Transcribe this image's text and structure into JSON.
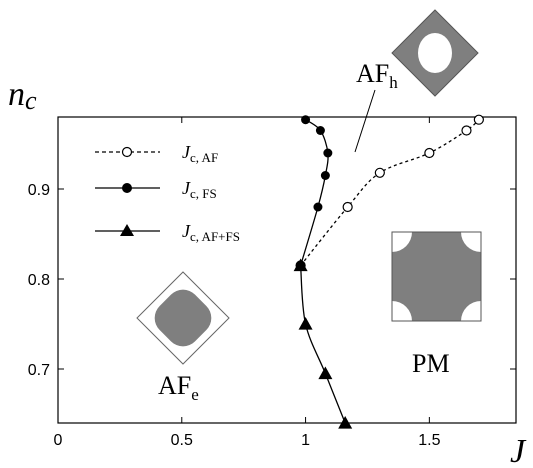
{
  "chart_data": {
    "type": "line",
    "xlabel": "J",
    "ylabel": "n",
    "ylabel_sub": "c",
    "xlim": [
      0,
      1.85
    ],
    "ylim": [
      0.64,
      0.98
    ],
    "xticks": [
      "0",
      "0.5",
      "1",
      "1.5"
    ],
    "yticks": [
      "0.7",
      "0.8",
      "0.9"
    ],
    "series": [
      {
        "name": "J",
        "sub": "c, AF",
        "marker": "open-circle",
        "line": "dashed",
        "points": [
          [
            0.98,
            0.815
          ],
          [
            1.17,
            0.88
          ],
          [
            1.3,
            0.918
          ],
          [
            1.5,
            0.94
          ],
          [
            1.65,
            0.965
          ],
          [
            1.7,
            0.977
          ]
        ]
      },
      {
        "name": "J",
        "sub": "c, FS",
        "marker": "filled-circle",
        "line": "solid",
        "points": [
          [
            1.0,
            0.977
          ],
          [
            1.06,
            0.965
          ],
          [
            1.09,
            0.94
          ],
          [
            1.08,
            0.915
          ],
          [
            1.05,
            0.88
          ],
          [
            0.98,
            0.815
          ]
        ]
      },
      {
        "name": "J",
        "sub": "c, AF+FS",
        "marker": "filled-triangle",
        "line": "solid",
        "points": [
          [
            0.98,
            0.815
          ],
          [
            1.0,
            0.75
          ],
          [
            1.08,
            0.695
          ],
          [
            1.16,
            0.64
          ]
        ]
      }
    ],
    "annotations": {
      "afh": {
        "main": "AF",
        "sub": "h"
      },
      "afe": {
        "main": "AF",
        "sub": "e"
      },
      "pm": "PM"
    }
  }
}
